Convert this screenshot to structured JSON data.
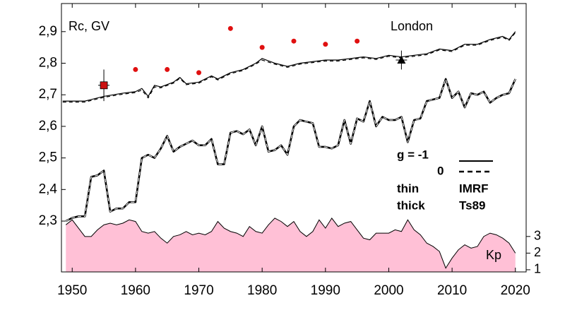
{
  "chart_data": {
    "type": "line",
    "ylabel": "Rc, GV",
    "annotation": "London",
    "y2label": "Kp",
    "legend": {
      "g": "g  = -1",
      "g0": "0",
      "thin": "thin",
      "thick": "thick",
      "imrf": "IMRF",
      "ts89": "Ts89"
    },
    "xlim": [
      1948.3,
      2021.7
    ],
    "ylim": [
      2.139,
      2.989
    ],
    "y2lim": [
      0.87,
      17.0
    ],
    "xticks": [
      1950,
      1960,
      1970,
      1980,
      1990,
      2000,
      2010,
      2020
    ],
    "yticks": [
      {
        "value": 2.3,
        "label": "2,3"
      },
      {
        "value": 2.4,
        "label": "2,4"
      },
      {
        "value": 2.5,
        "label": "2,5"
      },
      {
        "value": 2.6,
        "label": "2,6"
      },
      {
        "value": 2.7,
        "label": "2,7"
      },
      {
        "value": 2.8,
        "label": "2,8"
      },
      {
        "value": 2.9,
        "label": "2,9"
      }
    ],
    "y2ticks": [
      1,
      2,
      3
    ],
    "series": [
      {
        "kind": "area",
        "axis": "y2",
        "color": "#ffc0d6",
        "x": [
          1949,
          1950,
          1951,
          1952,
          1953,
          1954,
          1955,
          1956,
          1957,
          1958,
          1959,
          1960,
          1961,
          1962,
          1963,
          1964,
          1965,
          1966,
          1967,
          1968,
          1969,
          1970,
          1971,
          1972,
          1973,
          1974,
          1975,
          1976,
          1977,
          1978,
          1979,
          1980,
          1981,
          1982,
          1983,
          1984,
          1985,
          1986,
          1987,
          1988,
          1989,
          1990,
          1991,
          1992,
          1993,
          1994,
          1995,
          1996,
          1997,
          1998,
          1999,
          2000,
          2001,
          2002,
          2003,
          2004,
          2005,
          2006,
          2007,
          2008,
          2009,
          2010,
          2011,
          2012,
          2013,
          2014,
          2015,
          2016,
          2017,
          2018,
          2019,
          2020
        ],
        "values": [
          3.7,
          4.0,
          3.5,
          3.0,
          3.0,
          3.4,
          3.7,
          3.8,
          3.7,
          3.8,
          4.0,
          3.9,
          3.3,
          3.2,
          3.3,
          2.9,
          2.6,
          3.0,
          3.1,
          3.3,
          3.1,
          3.2,
          3.1,
          3.3,
          3.9,
          3.5,
          3.3,
          3.2,
          3.0,
          3.6,
          3.3,
          3.2,
          3.7,
          4.1,
          3.9,
          3.6,
          3.9,
          3.3,
          3.0,
          3.3,
          4.0,
          3.5,
          4.1,
          3.6,
          3.8,
          3.9,
          3.4,
          2.9,
          2.8,
          3.2,
          3.2,
          3.2,
          3.4,
          3.3,
          4.0,
          3.4,
          3.1,
          2.6,
          2.4,
          2.1,
          1.1,
          1.7,
          2.2,
          2.5,
          2.3,
          2.4,
          3.0,
          3.2,
          3.1,
          2.9,
          2.6,
          2.0
        ]
      },
      {
        "kind": "line",
        "color": "#000000",
        "width": 1.2,
        "dashed": false,
        "x": [
          1948.5,
          1952,
          1955,
          1958,
          1960,
          1961,
          1962,
          1963,
          1964,
          1966,
          1967,
          1968,
          1970,
          1972,
          1973,
          1975,
          1977,
          1979,
          1980,
          1982,
          1984,
          1986,
          1988,
          1990,
          1992,
          1994,
          1996,
          1998,
          2000,
          2002,
          2004,
          2006,
          2008,
          2010,
          2012,
          2014,
          2016,
          2018,
          2019,
          2020
        ],
        "values": [
          2.68,
          2.68,
          2.695,
          2.705,
          2.71,
          2.72,
          2.695,
          2.73,
          2.725,
          2.74,
          2.755,
          2.735,
          2.74,
          2.76,
          2.75,
          2.77,
          2.78,
          2.8,
          2.815,
          2.8,
          2.79,
          2.8,
          2.805,
          2.81,
          2.81,
          2.815,
          2.82,
          2.815,
          2.825,
          2.82,
          2.825,
          2.83,
          2.845,
          2.84,
          2.86,
          2.86,
          2.875,
          2.885,
          2.875,
          2.9
        ]
      },
      {
        "kind": "line",
        "color": "#000000",
        "width": 1.2,
        "dashed": true,
        "x": [
          1948.5,
          1952,
          1955,
          1958,
          1960,
          1961,
          1962,
          1963,
          1964,
          1966,
          1967,
          1968,
          1970,
          1972,
          1973,
          1975,
          1977,
          1979,
          1980,
          1982,
          1984,
          1986,
          1988,
          1990,
          1992,
          1994,
          1996,
          1998,
          2000,
          2002,
          2004,
          2006,
          2008,
          2010,
          2012,
          2014,
          2016,
          2018,
          2019,
          2020
        ],
        "values": [
          2.677,
          2.677,
          2.692,
          2.702,
          2.707,
          2.715,
          2.69,
          2.725,
          2.722,
          2.737,
          2.752,
          2.732,
          2.737,
          2.757,
          2.747,
          2.767,
          2.777,
          2.797,
          2.81,
          2.797,
          2.787,
          2.797,
          2.802,
          2.807,
          2.807,
          2.812,
          2.817,
          2.812,
          2.822,
          2.817,
          2.822,
          2.827,
          2.842,
          2.837,
          2.857,
          2.857,
          2.872,
          2.882,
          2.872,
          2.897
        ]
      },
      {
        "kind": "line",
        "color": "#000000",
        "width": 2.6,
        "dashed": false,
        "x": [
          1949,
          1950,
          1951,
          1952,
          1953,
          1954,
          1955,
          1956,
          1957,
          1958,
          1959,
          1960,
          1961,
          1962,
          1963,
          1964,
          1965,
          1966,
          1967,
          1968,
          1969,
          1970,
          1971,
          1972,
          1973,
          1974,
          1975,
          1976,
          1977,
          1978,
          1979,
          1980,
          1981,
          1982,
          1983,
          1984,
          1985,
          1986,
          1987,
          1988,
          1989,
          1990,
          1991,
          1992,
          1993,
          1994,
          1995,
          1996,
          1997,
          1998,
          1999,
          2000,
          2001,
          2002,
          2003,
          2004,
          2005,
          2006,
          2007,
          2008,
          2009,
          2010,
          2011,
          2012,
          2013,
          2014,
          2015,
          2016,
          2017,
          2018,
          2019,
          2020
        ],
        "values": [
          2.3,
          2.31,
          2.315,
          2.315,
          2.44,
          2.445,
          2.46,
          2.33,
          2.34,
          2.34,
          2.36,
          2.36,
          2.5,
          2.51,
          2.5,
          2.53,
          2.57,
          2.52,
          2.535,
          2.545,
          2.555,
          2.54,
          2.54,
          2.56,
          2.48,
          2.48,
          2.58,
          2.585,
          2.575,
          2.59,
          2.54,
          2.6,
          2.52,
          2.525,
          2.54,
          2.51,
          2.6,
          2.62,
          2.615,
          2.61,
          2.535,
          2.535,
          2.53,
          2.54,
          2.62,
          2.545,
          2.625,
          2.615,
          2.68,
          2.6,
          2.63,
          2.62,
          2.62,
          2.63,
          2.55,
          2.62,
          2.625,
          2.68,
          2.685,
          2.69,
          2.75,
          2.69,
          2.71,
          2.66,
          2.705,
          2.7,
          2.71,
          2.675,
          2.69,
          2.7,
          2.705,
          2.75
        ]
      },
      {
        "kind": "line",
        "color": "#ffffff",
        "width": 1.0,
        "dashed": true,
        "x": [
          1949,
          1950,
          1951,
          1952,
          1953,
          1954,
          1955,
          1956,
          1957,
          1958,
          1959,
          1960,
          1961,
          1962,
          1963,
          1964,
          1965,
          1966,
          1967,
          1968,
          1969,
          1970,
          1971,
          1972,
          1973,
          1974,
          1975,
          1976,
          1977,
          1978,
          1979,
          1980,
          1981,
          1982,
          1983,
          1984,
          1985,
          1986,
          1987,
          1988,
          1989,
          1990,
          1991,
          1992,
          1993,
          1994,
          1995,
          1996,
          1997,
          1998,
          1999,
          2000,
          2001,
          2002,
          2003,
          2004,
          2005,
          2006,
          2007,
          2008,
          2009,
          2010,
          2011,
          2012,
          2013,
          2014,
          2015,
          2016,
          2017,
          2018,
          2019,
          2020
        ],
        "values": [
          2.3,
          2.31,
          2.315,
          2.315,
          2.44,
          2.445,
          2.46,
          2.33,
          2.34,
          2.34,
          2.36,
          2.36,
          2.5,
          2.51,
          2.5,
          2.53,
          2.57,
          2.52,
          2.535,
          2.545,
          2.555,
          2.54,
          2.54,
          2.56,
          2.48,
          2.48,
          2.58,
          2.585,
          2.575,
          2.59,
          2.54,
          2.6,
          2.52,
          2.525,
          2.54,
          2.51,
          2.6,
          2.62,
          2.615,
          2.61,
          2.535,
          2.535,
          2.53,
          2.54,
          2.62,
          2.545,
          2.625,
          2.615,
          2.68,
          2.6,
          2.63,
          2.62,
          2.62,
          2.63,
          2.55,
          2.62,
          2.625,
          2.68,
          2.685,
          2.69,
          2.75,
          2.69,
          2.71,
          2.66,
          2.705,
          2.7,
          2.71,
          2.675,
          2.69,
          2.7,
          2.705,
          2.75
        ]
      },
      {
        "kind": "scatter",
        "marker": "circle",
        "color": "#e01010",
        "x": [
          1960,
          1965,
          1970,
          1975,
          1980,
          1985,
          1990,
          1995
        ],
        "values": [
          2.78,
          2.78,
          2.77,
          2.91,
          2.85,
          2.87,
          2.86,
          2.87
        ]
      },
      {
        "kind": "scatter",
        "marker": "square",
        "color": "#cc1010",
        "x": [
          1955
        ],
        "values": [
          2.73
        ],
        "errors": [
          0.05
        ]
      },
      {
        "kind": "scatter",
        "marker": "triangle",
        "color": "#000000",
        "x": [
          2002
        ],
        "values": [
          2.81
        ],
        "errors": [
          0.03
        ]
      }
    ]
  }
}
